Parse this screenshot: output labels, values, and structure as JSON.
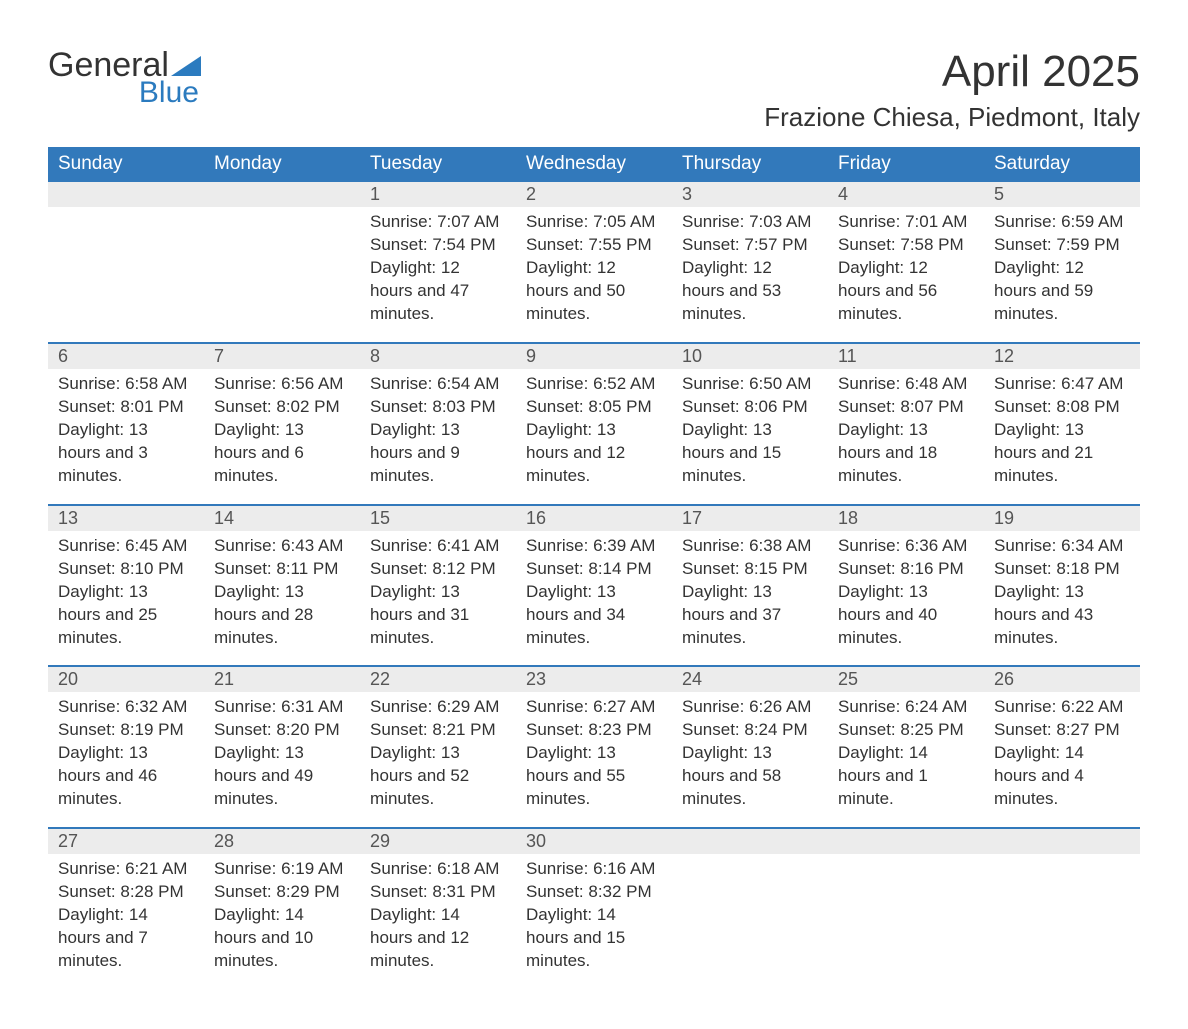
{
  "brand": {
    "word1": "General",
    "word2": "Blue",
    "accent_color": "#2b7bbf"
  },
  "title": "April 2025",
  "location": "Frazione Chiesa, Piedmont, Italy",
  "colors": {
    "header_bg": "#3279bb",
    "header_text": "#ffffff",
    "daynum_bg": "#ececec",
    "row_divider": "#3279bb",
    "body_text": "#333333",
    "page_bg": "#ffffff"
  },
  "weekdays": [
    "Sunday",
    "Monday",
    "Tuesday",
    "Wednesday",
    "Thursday",
    "Friday",
    "Saturday"
  ],
  "weeks": [
    [
      null,
      null,
      {
        "n": "1",
        "sunrise": "7:07 AM",
        "sunset": "7:54 PM",
        "daylight": "12 hours and 47 minutes."
      },
      {
        "n": "2",
        "sunrise": "7:05 AM",
        "sunset": "7:55 PM",
        "daylight": "12 hours and 50 minutes."
      },
      {
        "n": "3",
        "sunrise": "7:03 AM",
        "sunset": "7:57 PM",
        "daylight": "12 hours and 53 minutes."
      },
      {
        "n": "4",
        "sunrise": "7:01 AM",
        "sunset": "7:58 PM",
        "daylight": "12 hours and 56 minutes."
      },
      {
        "n": "5",
        "sunrise": "6:59 AM",
        "sunset": "7:59 PM",
        "daylight": "12 hours and 59 minutes."
      }
    ],
    [
      {
        "n": "6",
        "sunrise": "6:58 AM",
        "sunset": "8:01 PM",
        "daylight": "13 hours and 3 minutes."
      },
      {
        "n": "7",
        "sunrise": "6:56 AM",
        "sunset": "8:02 PM",
        "daylight": "13 hours and 6 minutes."
      },
      {
        "n": "8",
        "sunrise": "6:54 AM",
        "sunset": "8:03 PM",
        "daylight": "13 hours and 9 minutes."
      },
      {
        "n": "9",
        "sunrise": "6:52 AM",
        "sunset": "8:05 PM",
        "daylight": "13 hours and 12 minutes."
      },
      {
        "n": "10",
        "sunrise": "6:50 AM",
        "sunset": "8:06 PM",
        "daylight": "13 hours and 15 minutes."
      },
      {
        "n": "11",
        "sunrise": "6:48 AM",
        "sunset": "8:07 PM",
        "daylight": "13 hours and 18 minutes."
      },
      {
        "n": "12",
        "sunrise": "6:47 AM",
        "sunset": "8:08 PM",
        "daylight": "13 hours and 21 minutes."
      }
    ],
    [
      {
        "n": "13",
        "sunrise": "6:45 AM",
        "sunset": "8:10 PM",
        "daylight": "13 hours and 25 minutes."
      },
      {
        "n": "14",
        "sunrise": "6:43 AM",
        "sunset": "8:11 PM",
        "daylight": "13 hours and 28 minutes."
      },
      {
        "n": "15",
        "sunrise": "6:41 AM",
        "sunset": "8:12 PM",
        "daylight": "13 hours and 31 minutes."
      },
      {
        "n": "16",
        "sunrise": "6:39 AM",
        "sunset": "8:14 PM",
        "daylight": "13 hours and 34 minutes."
      },
      {
        "n": "17",
        "sunrise": "6:38 AM",
        "sunset": "8:15 PM",
        "daylight": "13 hours and 37 minutes."
      },
      {
        "n": "18",
        "sunrise": "6:36 AM",
        "sunset": "8:16 PM",
        "daylight": "13 hours and 40 minutes."
      },
      {
        "n": "19",
        "sunrise": "6:34 AM",
        "sunset": "8:18 PM",
        "daylight": "13 hours and 43 minutes."
      }
    ],
    [
      {
        "n": "20",
        "sunrise": "6:32 AM",
        "sunset": "8:19 PM",
        "daylight": "13 hours and 46 minutes."
      },
      {
        "n": "21",
        "sunrise": "6:31 AM",
        "sunset": "8:20 PM",
        "daylight": "13 hours and 49 minutes."
      },
      {
        "n": "22",
        "sunrise": "6:29 AM",
        "sunset": "8:21 PM",
        "daylight": "13 hours and 52 minutes."
      },
      {
        "n": "23",
        "sunrise": "6:27 AM",
        "sunset": "8:23 PM",
        "daylight": "13 hours and 55 minutes."
      },
      {
        "n": "24",
        "sunrise": "6:26 AM",
        "sunset": "8:24 PM",
        "daylight": "13 hours and 58 minutes."
      },
      {
        "n": "25",
        "sunrise": "6:24 AM",
        "sunset": "8:25 PM",
        "daylight": "14 hours and 1 minute."
      },
      {
        "n": "26",
        "sunrise": "6:22 AM",
        "sunset": "8:27 PM",
        "daylight": "14 hours and 4 minutes."
      }
    ],
    [
      {
        "n": "27",
        "sunrise": "6:21 AM",
        "sunset": "8:28 PM",
        "daylight": "14 hours and 7 minutes."
      },
      {
        "n": "28",
        "sunrise": "6:19 AM",
        "sunset": "8:29 PM",
        "daylight": "14 hours and 10 minutes."
      },
      {
        "n": "29",
        "sunrise": "6:18 AM",
        "sunset": "8:31 PM",
        "daylight": "14 hours and 12 minutes."
      },
      {
        "n": "30",
        "sunrise": "6:16 AM",
        "sunset": "8:32 PM",
        "daylight": "14 hours and 15 minutes."
      },
      null,
      null,
      null
    ]
  ],
  "labels": {
    "sunrise": "Sunrise: ",
    "sunset": "Sunset: ",
    "daylight": "Daylight: "
  }
}
